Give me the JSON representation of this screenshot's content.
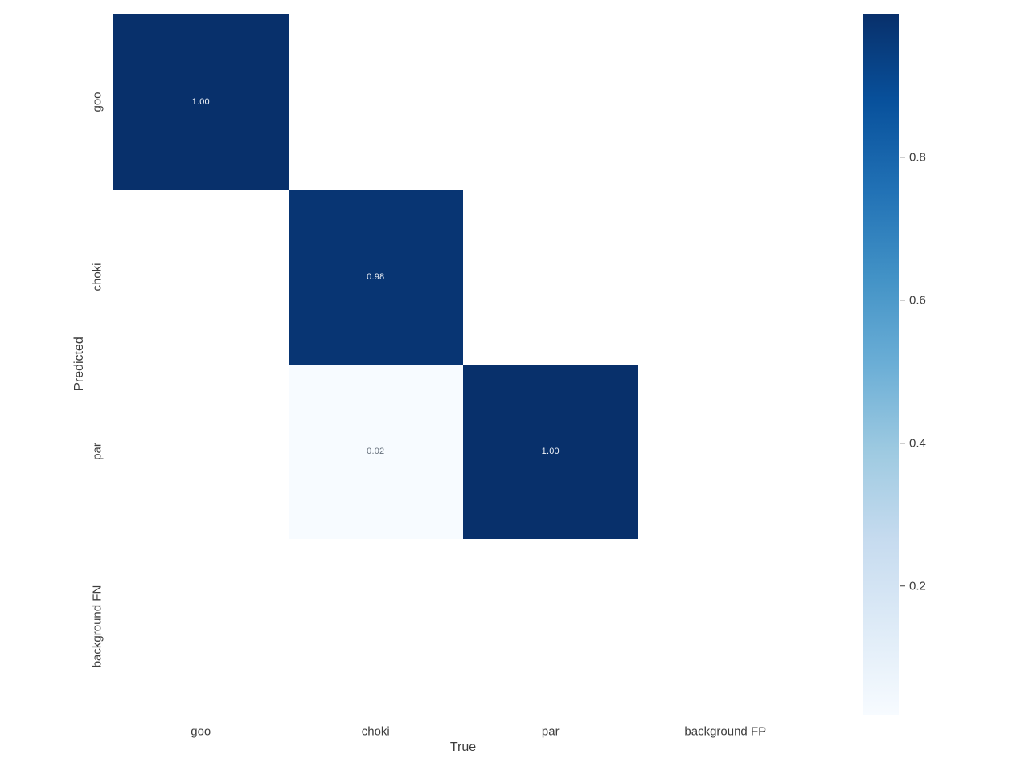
{
  "figure": {
    "background_color": "#ffffff",
    "text_color": "#3d3d3d"
  },
  "chart_data": {
    "type": "heatmap",
    "xlabel": "True",
    "ylabel": "Predicted",
    "x_categories": [
      "goo",
      "choki",
      "par",
      "background FP"
    ],
    "y_categories": [
      "goo",
      "choki",
      "par",
      "background FN"
    ],
    "matrix": [
      [
        1.0,
        null,
        null,
        null
      ],
      [
        null,
        0.98,
        null,
        null
      ],
      [
        null,
        0.02,
        1.0,
        null
      ],
      [
        null,
        null,
        null,
        null
      ]
    ],
    "annotations": [
      [
        "1.00",
        "",
        "",
        ""
      ],
      [
        "",
        "0.98",
        "",
        ""
      ],
      [
        "",
        "0.02",
        "1.00",
        ""
      ],
      [
        "",
        "",
        "",
        ""
      ]
    ],
    "vmin": 0.02,
    "vmax": 1.0,
    "colormap_name": "Blues",
    "colormap_stops": [
      "#f7fbff",
      "#deebf7",
      "#c6dbef",
      "#9ecae1",
      "#6baed6",
      "#4292c6",
      "#2171b5",
      "#08519c",
      "#08306b"
    ],
    "empty_cell_color": "#ffffff",
    "annot_color_on_dark": "#f0f3f8",
    "annot_color_on_light": "#66707c",
    "colorbar_ticks": [
      {
        "value": 0.8,
        "label": "0.8"
      },
      {
        "value": 0.6,
        "label": "0.6"
      },
      {
        "value": 0.4,
        "label": "0.4"
      },
      {
        "value": 0.2,
        "label": "0.2"
      }
    ],
    "grid": false,
    "legend_position": "right-colorbar"
  }
}
